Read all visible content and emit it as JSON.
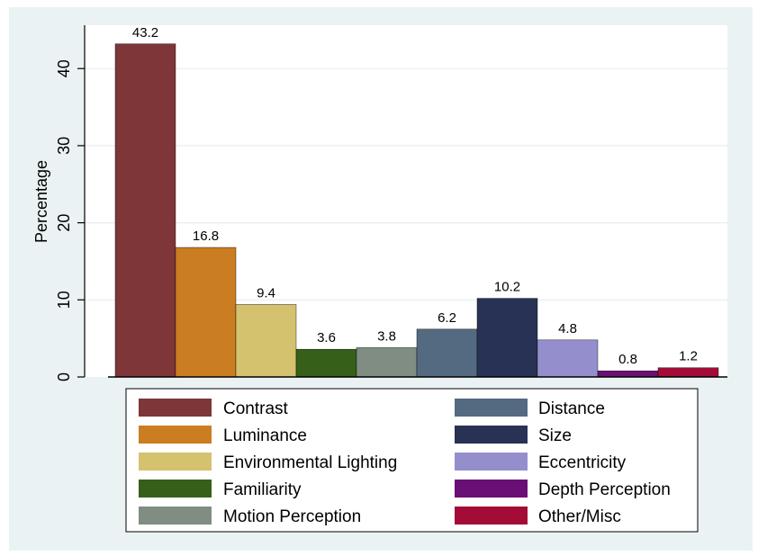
{
  "chart_data": {
    "type": "bar",
    "title": "",
    "xlabel": "",
    "ylabel": "Percentage",
    "ylim": [
      0,
      45
    ],
    "yticks": [
      0,
      10,
      20,
      30,
      40
    ],
    "grid": true,
    "legend_position": "bottom",
    "categories": [
      "Contrast",
      "Luminance",
      "Environmental Lighting",
      "Familiarity",
      "Motion Perception",
      "Distance",
      "Size",
      "Eccentricity",
      "Depth Perception",
      "Other/Misc"
    ],
    "values": [
      43.2,
      16.8,
      9.4,
      3.6,
      3.8,
      6.2,
      10.2,
      4.8,
      0.8,
      1.2
    ],
    "value_labels": [
      "43.2",
      "16.8",
      "9.4",
      "3.6",
      "3.8",
      "6.2",
      "10.2",
      "4.8",
      "0.8",
      "1.2"
    ],
    "colors": [
      "#7e3639",
      "#cb7d21",
      "#d5c26f",
      "#366019",
      "#7f8d82",
      "#546a81",
      "#283255",
      "#948fcc",
      "#6a0f76",
      "#a20c37"
    ]
  }
}
